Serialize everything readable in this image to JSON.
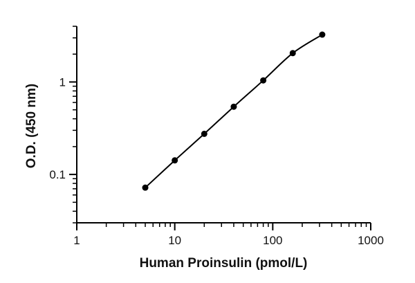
{
  "chart_data": {
    "type": "scatter",
    "title": "",
    "xlabel": "Human Proinsulin (pmol/L)",
    "ylabel": "O.D. (450 nm)",
    "xscale": "log",
    "yscale": "log",
    "xlim": [
      1,
      1000
    ],
    "ylim": [
      0.03,
      4
    ],
    "xticks": [
      {
        "value": 1,
        "label": "1"
      },
      {
        "value": 10,
        "label": "10"
      },
      {
        "value": 100,
        "label": "100"
      },
      {
        "value": 1000,
        "label": "1000"
      }
    ],
    "yticks": [
      {
        "value": 0.1,
        "label": "0.1"
      },
      {
        "value": 1,
        "label": "1"
      }
    ],
    "grid": false,
    "legend": "none",
    "series": [
      {
        "x": [
          5,
          10,
          20,
          40,
          80,
          160,
          320
        ],
        "y": [
          0.072,
          0.142,
          0.275,
          0.54,
          1.04,
          2.05,
          3.25
        ],
        "marker": "circle",
        "line": "smooth-fit",
        "color": "#000000"
      }
    ]
  }
}
